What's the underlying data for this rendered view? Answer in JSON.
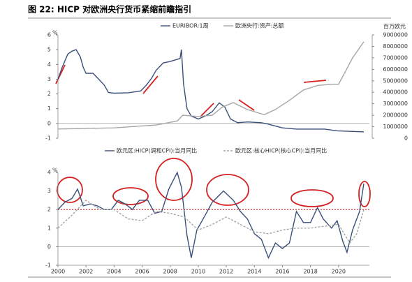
{
  "title": "图 22: HICP 对欧洲央行货币紧缩前瞻指引",
  "chart_data": [
    {
      "type": "line",
      "y_unit": "%",
      "y2_unit": "百万欧元",
      "xlim": [
        2000,
        2022.2
      ],
      "ylim": [
        -1,
        6
      ],
      "yticks": [
        -1,
        0,
        1,
        2,
        3,
        4,
        5,
        6
      ],
      "y2lim": [
        0,
        9000000
      ],
      "y2ticks": [
        0,
        1000000,
        2000000,
        3000000,
        4000000,
        5000000,
        6000000,
        7000000,
        8000000,
        9000000
      ],
      "series": [
        {
          "name": "EURIBOR:1周",
          "color": "#3a4f7a",
          "dash": false,
          "x": [
            2000.0,
            2000.3,
            2000.7,
            2001.0,
            2001.3,
            2001.6,
            2001.8,
            2002.0,
            2002.5,
            2002.9,
            2003.3,
            2003.6,
            2004.0,
            2005.0,
            2005.9,
            2006.3,
            2006.7,
            2007.0,
            2007.5,
            2008.0,
            2008.7,
            2008.8,
            2008.95,
            2009.2,
            2009.5,
            2010.0,
            2010.5,
            2011.0,
            2011.5,
            2011.9,
            2012.3,
            2012.8,
            2013.5,
            2014.5,
            2015.0,
            2016.0,
            2017.0,
            2019.0,
            2019.9,
            2021.8
          ],
          "values": [
            3.0,
            3.8,
            4.7,
            4.9,
            5.0,
            4.5,
            3.8,
            3.4,
            3.4,
            3.0,
            2.6,
            2.1,
            2.05,
            2.08,
            2.2,
            2.6,
            3.1,
            3.6,
            4.1,
            4.2,
            4.4,
            5.0,
            2.7,
            1.0,
            0.5,
            0.3,
            0.5,
            0.8,
            1.4,
            1.1,
            0.3,
            0.05,
            0.1,
            0.05,
            -0.05,
            -0.3,
            -0.38,
            -0.38,
            -0.5,
            -0.57
          ]
        },
        {
          "name": "欧洲央行:资产:总额",
          "color": "#a6a6a6",
          "dash": false,
          "axis": "y2",
          "x": [
            2000.0,
            2004.0,
            2007.0,
            2008.5,
            2008.9,
            2010.0,
            2011.0,
            2011.7,
            2012.5,
            2013.5,
            2014.7,
            2015.5,
            2016.5,
            2017.5,
            2018.5,
            2019.5,
            2020.0,
            2020.4,
            2021.0,
            2021.8
          ],
          "values": [
            800000,
            900000,
            1150000,
            1500000,
            2000000,
            1900000,
            2000000,
            2700000,
            3100000,
            2500000,
            2050000,
            2500000,
            3300000,
            4200000,
            4600000,
            4700000,
            4700000,
            5600000,
            7000000,
            8400000
          ]
        }
      ]
    },
    {
      "type": "line",
      "y_unit": "%",
      "reference_line": 2,
      "xlim": [
        2000,
        2022.2
      ],
      "xticks": [
        2000,
        2002,
        2004,
        2006,
        2008,
        2010,
        2012,
        2014,
        2016,
        2018,
        2020
      ],
      "ylim": [
        -1,
        4
      ],
      "yticks": [
        -1,
        0,
        1,
        2,
        3,
        4
      ],
      "series": [
        {
          "name": "欧元区:HICP(调和CPI):当月同比",
          "color": "#3a4f7a",
          "dash": false,
          "x": [
            2000.0,
            2000.5,
            2001.0,
            2001.4,
            2001.8,
            2002.3,
            2002.8,
            2003.3,
            2003.8,
            2004.3,
            2004.8,
            2005.3,
            2005.8,
            2006.4,
            2006.9,
            2007.4,
            2007.9,
            2008.5,
            2008.8,
            2009.2,
            2009.5,
            2009.9,
            2010.5,
            2011.0,
            2011.8,
            2012.5,
            2013.0,
            2013.5,
            2014.0,
            2014.5,
            2015.0,
            2015.5,
            2016.0,
            2016.5,
            2017.0,
            2017.5,
            2018.0,
            2018.5,
            2018.9,
            2019.5,
            2019.9,
            2020.3,
            2020.6,
            2021.0,
            2021.5,
            2021.8
          ],
          "values": [
            2.0,
            2.4,
            2.6,
            3.1,
            2.2,
            2.3,
            2.2,
            2.0,
            2.0,
            2.5,
            2.3,
            2.0,
            2.5,
            2.5,
            1.8,
            1.9,
            3.1,
            4.0,
            3.2,
            0.6,
            -0.6,
            0.9,
            1.7,
            2.4,
            3.0,
            2.5,
            1.9,
            1.5,
            0.7,
            0.4,
            -0.6,
            0.2,
            -0.1,
            0.2,
            1.9,
            1.3,
            1.3,
            2.1,
            1.5,
            1.0,
            1.4,
            0.3,
            -0.3,
            0.9,
            1.9,
            3.4
          ]
        },
        {
          "name": "欧元区:核心HICP(核心CPI):当月同比",
          "color": "#a6a6a6",
          "dash": true,
          "x": [
            2000,
            2001,
            2002,
            2003,
            2004,
            2005,
            2006,
            2007,
            2008,
            2009,
            2010,
            2011,
            2012,
            2013,
            2014,
            2015,
            2016,
            2017,
            2018,
            2019,
            2020,
            2020.8,
            2021.3,
            2021.8
          ],
          "values": [
            1.0,
            1.7,
            2.5,
            2.0,
            2.0,
            1.5,
            1.4,
            1.9,
            1.8,
            1.6,
            0.9,
            1.2,
            1.6,
            1.2,
            0.8,
            0.7,
            0.9,
            1.0,
            1.0,
            1.1,
            1.2,
            0.2,
            0.7,
            2.0
          ]
        }
      ]
    }
  ]
}
